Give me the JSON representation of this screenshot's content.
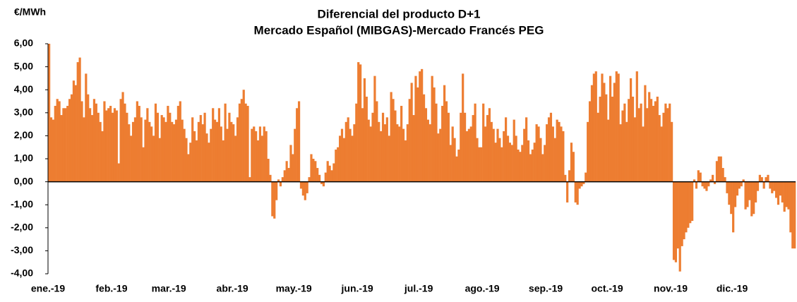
{
  "chart_data": {
    "type": "bar",
    "title": "Diferencial del producto D+1",
    "subtitle": "Mercado Español (MIBGAS)-Mercado Francés PEG",
    "y_label": "€/MWh",
    "color": "#ed7d31",
    "ylim": [
      -4,
      6
    ],
    "yticks": [
      {
        "value": 6,
        "label": "6,00"
      },
      {
        "value": 5,
        "label": "5,00"
      },
      {
        "value": 4,
        "label": "4,00"
      },
      {
        "value": 3,
        "label": "3,00"
      },
      {
        "value": 2,
        "label": "2,00"
      },
      {
        "value": 1,
        "label": "1,00"
      },
      {
        "value": 0,
        "label": "0,00"
      },
      {
        "value": -1,
        "label": "-1,00"
      },
      {
        "value": -2,
        "label": "-2,00"
      },
      {
        "value": -3,
        "label": "-3,00"
      },
      {
        "value": -4,
        "label": "-4,00"
      }
    ],
    "categories": [
      "ene.-19",
      null,
      null,
      null,
      null,
      null,
      null,
      null,
      null,
      null,
      null,
      null,
      null,
      null,
      null,
      null,
      null,
      null,
      null,
      null,
      null,
      null,
      null,
      null,
      null,
      null,
      null,
      null,
      null,
      null,
      null,
      "feb.-19",
      null,
      null,
      null,
      null,
      null,
      null,
      null,
      null,
      null,
      null,
      null,
      null,
      null,
      null,
      null,
      null,
      null,
      null,
      null,
      null,
      null,
      null,
      null,
      null,
      null,
      null,
      null,
      "mar.-19",
      null,
      null,
      null,
      null,
      null,
      null,
      null,
      null,
      null,
      null,
      null,
      null,
      null,
      null,
      null,
      null,
      null,
      null,
      null,
      null,
      null,
      null,
      null,
      null,
      null,
      null,
      null,
      null,
      null,
      null,
      "abr.-19",
      null,
      null,
      null,
      null,
      null,
      null,
      null,
      null,
      null,
      null,
      null,
      null,
      null,
      null,
      null,
      null,
      null,
      null,
      null,
      null,
      null,
      null,
      null,
      null,
      null,
      null,
      null,
      null,
      null,
      "may.-19",
      null,
      null,
      null,
      null,
      null,
      null,
      null,
      null,
      null,
      null,
      null,
      null,
      null,
      null,
      null,
      null,
      null,
      null,
      null,
      null,
      null,
      null,
      null,
      null,
      null,
      null,
      null,
      null,
      null,
      null,
      "jun.-19",
      null,
      null,
      null,
      null,
      null,
      null,
      null,
      null,
      null,
      null,
      null,
      null,
      null,
      null,
      null,
      null,
      null,
      null,
      null,
      null,
      null,
      null,
      null,
      null,
      null,
      null,
      null,
      null,
      null,
      "jul.-19",
      null,
      null,
      null,
      null,
      null,
      null,
      null,
      null,
      null,
      null,
      null,
      null,
      null,
      null,
      null,
      null,
      null,
      null,
      null,
      null,
      null,
      null,
      null,
      null,
      null,
      null,
      null,
      null,
      null,
      null,
      "ago.-19",
      null,
      null,
      null,
      null,
      null,
      null,
      null,
      null,
      null,
      null,
      null,
      null,
      null,
      null,
      null,
      null,
      null,
      null,
      null,
      null,
      null,
      null,
      null,
      null,
      null,
      null,
      null,
      null,
      null,
      null,
      "sep.-19",
      null,
      null,
      null,
      null,
      null,
      null,
      null,
      null,
      null,
      null,
      null,
      null,
      null,
      null,
      null,
      null,
      null,
      null,
      null,
      null,
      null,
      null,
      null,
      null,
      null,
      null,
      null,
      null,
      null,
      "oct.-19",
      null,
      null,
      null,
      null,
      null,
      null,
      null,
      null,
      null,
      null,
      null,
      null,
      null,
      null,
      null,
      null,
      null,
      null,
      null,
      null,
      null,
      null,
      null,
      null,
      null,
      null,
      null,
      null,
      null,
      null,
      "nov.-19",
      null,
      null,
      null,
      null,
      null,
      null,
      null,
      null,
      null,
      null,
      null,
      null,
      null,
      null,
      null,
      null,
      null,
      null,
      null,
      null,
      null,
      null,
      null,
      null,
      null,
      null,
      null,
      null,
      null,
      "dic.-19",
      null,
      null,
      null,
      null,
      null,
      null,
      null,
      null,
      null,
      null,
      null,
      null,
      null,
      null,
      null,
      null,
      null,
      null,
      null,
      null,
      null,
      null,
      null,
      null,
      null,
      null,
      null,
      null,
      null,
      null
    ],
    "values": [
      6.0,
      2.8,
      2.7,
      3.3,
      3.6,
      3.5,
      2.9,
      3.2,
      3.2,
      3.3,
      3.6,
      3.8,
      4.4,
      4.2,
      5.2,
      5.4,
      3.5,
      2.8,
      4.7,
      3.8,
      3.2,
      2.9,
      3.6,
      3.4,
      3.0,
      2.6,
      2.2,
      3.5,
      3.1,
      3.2,
      3.3,
      3.0,
      3.2,
      3.1,
      0.8,
      3.6,
      3.9,
      3.4,
      3.0,
      2.5,
      2.0,
      2.6,
      2.8,
      3.5,
      3.3,
      2.8,
      1.5,
      2.7,
      3.2,
      2.6,
      2.4,
      2.0,
      3.4,
      3.0,
      1.9,
      2.9,
      2.8,
      2.6,
      3.3,
      3.0,
      2.6,
      2.5,
      2.7,
      3.3,
      3.5,
      2.7,
      2.3,
      1.9,
      1.2,
      1.7,
      2.8,
      2.2,
      1.8,
      2.6,
      2.9,
      2.5,
      3.0,
      2.1,
      1.7,
      2.3,
      3.2,
      2.7,
      2.6,
      3.2,
      2.4,
      1.8,
      3.4,
      2.3,
      3.0,
      2.6,
      2.5,
      2.0,
      2.8,
      3.4,
      3.6,
      4.0,
      3.4,
      3.3,
      0.2,
      2.3,
      2.4,
      2.2,
      1.8,
      2.4,
      2.0,
      2.4,
      2.2,
      1.0,
      0.3,
      -1.5,
      -1.6,
      -0.8,
      0.1,
      -0.2,
      0.2,
      0.5,
      0.9,
      0.6,
      1.6,
      1.2,
      2.3,
      3.2,
      3.5,
      -0.3,
      -0.6,
      -0.8,
      -0.5,
      0.2,
      1.2,
      1.0,
      0.9,
      0.6,
      0.3,
      -0.1,
      -0.2,
      0.4,
      0.9,
      0.7,
      0.5,
      0.8,
      1.4,
      1.5,
      2.0,
      2.3,
      1.9,
      2.6,
      2.8,
      2.3,
      2.0,
      2.5,
      3.4,
      5.2,
      5.1,
      3.2,
      4.5,
      3.7,
      2.7,
      2.4,
      3.0,
      4.6,
      3.5,
      2.6,
      2.2,
      3.0,
      2.5,
      2.8,
      2.0,
      3.9,
      3.6,
      3.1,
      2.5,
      2.4,
      3.3,
      2.3,
      1.8,
      2.5,
      3.6,
      4.3,
      2.9,
      4.6,
      4.1,
      4.8,
      4.9,
      3.8,
      3.2,
      2.7,
      2.5,
      4.6,
      4.1,
      3.4,
      2.1,
      2.3,
      3.3,
      4.2,
      3.5,
      3.0,
      1.6,
      2.4,
      1.9,
      1.1,
      1.4,
      3.0,
      4.7,
      3.0,
      2.2,
      2.3,
      2.4,
      2.9,
      3.4,
      1.9,
      1.5,
      1.5,
      3.4,
      2.4,
      2.9,
      3.2,
      2.6,
      2.3,
      1.7,
      2.3,
      1.9,
      1.5,
      2.2,
      2.8,
      2.0,
      1.7,
      1.6,
      2.7,
      2.0,
      1.4,
      1.3,
      1.6,
      2.3,
      2.8,
      1.8,
      1.2,
      1.4,
      1.7,
      2.5,
      2.4,
      1.9,
      1.2,
      1.6,
      2.5,
      2.8,
      3.0,
      2.4,
      1.9,
      2.7,
      2.6,
      2.4,
      2.2,
      0.3,
      -0.9,
      0.5,
      1.7,
      1.3,
      -0.9,
      -1.0,
      -0.3,
      -0.2,
      -0.1,
      0.4,
      2.6,
      3.5,
      4.2,
      4.7,
      4.8,
      3.0,
      3.7,
      4.7,
      4.3,
      3.8,
      2.7,
      4.6,
      3.7,
      4.3,
      4.8,
      4.7,
      2.5,
      3.1,
      3.4,
      2.6,
      3.6,
      4.5,
      3.7,
      2.8,
      4.8,
      3.2,
      3.4,
      2.4,
      4.2,
      3.2,
      3.9,
      3.6,
      3.3,
      3.5,
      3.7,
      2.9,
      2.4,
      3.0,
      3.4,
      3.2,
      3.4,
      2.6,
      -3.4,
      -3.5,
      -2.9,
      -3.9,
      -2.8,
      -2.5,
      -2.2,
      -2.0,
      -1.8,
      -1.7,
      0.1,
      -0.3,
      0.5,
      0.4,
      -0.2,
      -0.3,
      -0.4,
      -0.2,
      0.1,
      0.3,
      -0.1,
      0.9,
      1.1,
      1.1,
      0.6,
      0.2,
      -0.5,
      -1.0,
      -1.4,
      -2.2,
      -1.1,
      -0.6,
      -0.3,
      -0.2,
      0.1,
      -1.2,
      -1.1,
      -0.8,
      -1.5,
      -1.4,
      -0.9,
      -0.4,
      0.3,
      0.2,
      -0.3,
      0.2,
      0.3,
      -0.3,
      -0.5,
      -0.4,
      -0.7,
      -1.0,
      -0.6,
      -0.9,
      -1.3,
      -1.1,
      -1.2,
      -2.2,
      -2.9,
      -2.9
    ]
  }
}
